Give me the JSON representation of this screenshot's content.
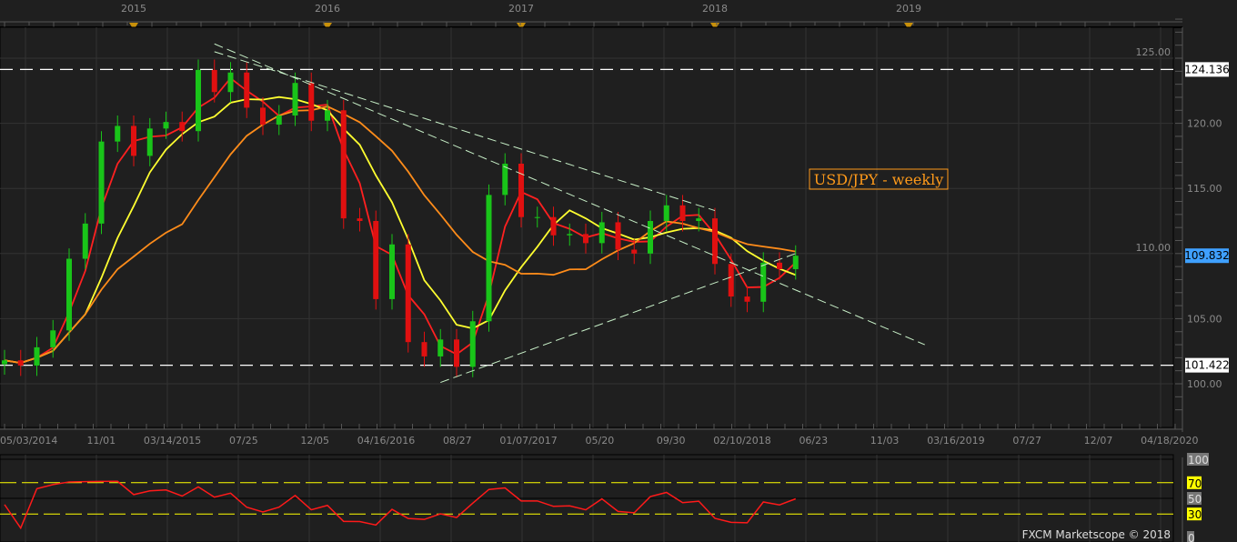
{
  "chart_data": {
    "type": "candlestick",
    "title": "USD/JPY - weekly",
    "footer": "FXCM Marketscope © 2018",
    "ylim": [
      96.5,
      129
    ],
    "y_ticks": [
      "100.00",
      "105.00",
      "110.00",
      "115.00",
      "120.00",
      "125.00"
    ],
    "year_markers": [
      "2015",
      "2016",
      "2017",
      "2018",
      "2019"
    ],
    "x_tick_labels": [
      "05/03/2014",
      "11/01",
      "03/14/2015",
      "07/25",
      "12/05",
      "04/16/2016",
      "08/27",
      "01/07/2017",
      "05/20",
      "09/30",
      "02/10/2018",
      "06/23",
      "11/03",
      "03/16/2019",
      "07/27",
      "12/07",
      "04/18/2020"
    ],
    "price_labels": {
      "resistance": "124.136",
      "current": "109.832",
      "support": "101.422"
    },
    "horizontal_lines": [
      124.136,
      101.422
    ],
    "dates": [
      "2014-05",
      "2014-06",
      "2014-07",
      "2014-08",
      "2014-09",
      "2014-10",
      "2014-11",
      "2014-12",
      "2015-01",
      "2015-02",
      "2015-03",
      "2015-04",
      "2015-05",
      "2015-06",
      "2015-07",
      "2015-08",
      "2015-09",
      "2015-10",
      "2015-11",
      "2015-12",
      "2016-01",
      "2016-02",
      "2016-03",
      "2016-04",
      "2016-05",
      "2016-06",
      "2016-07",
      "2016-08",
      "2016-09",
      "2016-10",
      "2016-11",
      "2016-12",
      "2017-01",
      "2017-02",
      "2017-03",
      "2017-04",
      "2017-05",
      "2017-06",
      "2017-07",
      "2017-08",
      "2017-09",
      "2017-10",
      "2017-11",
      "2017-12",
      "2018-01",
      "2018-02",
      "2018-03",
      "2018-04",
      "2018-05",
      "2018-06"
    ],
    "close": [
      101.8,
      101.4,
      102.8,
      104.1,
      109.6,
      112.3,
      118.6,
      119.8,
      117.5,
      119.6,
      120.1,
      119.4,
      124.1,
      122.4,
      123.9,
      121.2,
      119.9,
      120.6,
      123.1,
      120.2,
      121.0,
      112.7,
      112.5,
      106.5,
      110.7,
      103.2,
      102.1,
      103.4,
      101.3,
      104.8,
      114.5,
      116.9,
      112.8,
      112.8,
      111.4,
      111.5,
      110.8,
      112.4,
      110.3,
      110.0,
      112.5,
      113.7,
      112.5,
      112.7,
      109.2,
      106.7,
      106.3,
      109.3,
      108.8,
      109.832
    ],
    "trend_lines": [
      {
        "from": [
          "2015-06",
          126.1
        ],
        "to": [
          "2019-02",
          103.0
        ]
      },
      {
        "from": [
          "2015-06",
          125.5
        ],
        "to": [
          "2018-01",
          113.3
        ]
      },
      {
        "from": [
          "2016-08",
          100.1
        ],
        "to": [
          "2018-06",
          110.0
        ]
      }
    ],
    "moving_average_colors": [
      "#ff2020",
      "#ffff30",
      "#ff8c1a"
    ],
    "rsi": {
      "levels": [
        30,
        50,
        70
      ],
      "ylim": [
        0,
        100
      ],
      "tick_labels": [
        "100",
        "70",
        "50",
        "30",
        "0"
      ]
    },
    "colors": {
      "up": "#19c419",
      "down": "#e01010",
      "trend": "#c8f0c8",
      "title": "#ff9a1a",
      "current_label_bg": "#3fa0ff"
    }
  }
}
